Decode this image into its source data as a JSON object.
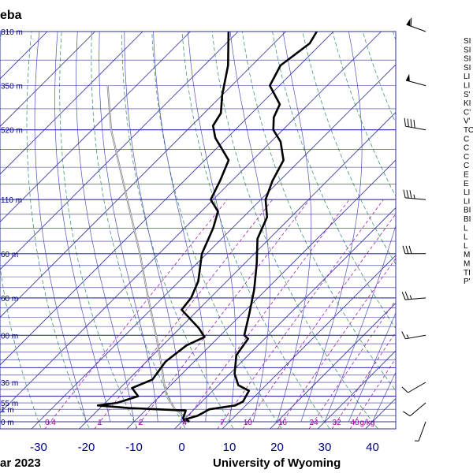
{
  "title": "eba",
  "footer": {
    "date": "ar 2023",
    "credit": "University of Wyoming"
  },
  "colors": {
    "isobar": "#3030a0",
    "isotherm": "#3333aa",
    "dry_adiabat": "#2e8b57",
    "moist_adiabat": "#5050c0",
    "mixing_ratio": "#a000a0",
    "profile": "#000000",
    "parcel": "#888888",
    "tick_text": "#000080"
  },
  "chart_data": {
    "type": "line",
    "title": "eba",
    "xlabel": "",
    "ylabel": "",
    "xlim": [
      -40,
      45
    ],
    "x_ticks": [
      -30,
      -20,
      -10,
      0,
      10,
      20,
      30,
      40
    ],
    "height_labels": [
      {
        "label": "810 m",
        "p": 200
      },
      {
        "label": "350 m",
        "p": 250
      },
      {
        "label": "520 m",
        "p": 300
      },
      {
        "label": "110 m",
        "p": 400
      },
      {
        "label": "60 m",
        "p": 500
      },
      {
        "label": "60 m",
        "p": 600
      },
      {
        "label": "00 m",
        "p": 700
      },
      {
        "label": "36 m",
        "p": 850
      },
      {
        "label": "55 m",
        "p": 925
      },
      {
        "label": "1 m",
        "p": 950
      },
      {
        "label": "0 m",
        "p": 1000
      }
    ],
    "mixing_ratio_labels": [
      "0.4",
      "1",
      "2",
      "4",
      "7",
      "10",
      "16",
      "24",
      "32",
      "40",
      "g/kg"
    ],
    "series": [
      {
        "points": [
          {
            "p": 1000,
            "t": 1.6
          },
          {
            "p": 990,
            "t": 0.3
          },
          {
            "p": 975,
            "t": 2.1
          },
          {
            "p": 950,
            "t": 3.2
          },
          {
            "p": 935,
            "t": 7.8
          },
          {
            "p": 920,
            "t": 8.6
          },
          {
            "p": 880,
            "t": 7.6
          },
          {
            "p": 860,
            "t": 4.2
          },
          {
            "p": 820,
            "t": 1.0
          },
          {
            "p": 760,
            "t": -2.5
          },
          {
            "p": 710,
            "t": -3.5
          },
          {
            "p": 700,
            "t": -5.0
          },
          {
            "p": 640,
            "t": -8.5
          },
          {
            "p": 580,
            "t": -12.5
          },
          {
            "p": 520,
            "t": -17.5
          },
          {
            "p": 470,
            "t": -22.5
          },
          {
            "p": 430,
            "t": -25.0
          },
          {
            "p": 400,
            "t": -29.0
          },
          {
            "p": 370,
            "t": -31.5
          },
          {
            "p": 340,
            "t": -33.5
          },
          {
            "p": 315,
            "t": -38.0
          },
          {
            "p": 300,
            "t": -42.0
          },
          {
            "p": 285,
            "t": -44.5
          },
          {
            "p": 270,
            "t": -46.0
          },
          {
            "p": 250,
            "t": -52.0
          },
          {
            "p": 230,
            "t": -54.0
          },
          {
            "p": 210,
            "t": -52.5
          },
          {
            "p": 200,
            "t": -53.5
          }
        ]
      },
      {
        "points": [
          {
            "p": 1000,
            "t": 0.7
          },
          {
            "p": 985,
            "t": -0.5
          },
          {
            "p": 975,
            "t": -0.8
          },
          {
            "p": 955,
            "t": -1.5
          },
          {
            "p": 945,
            "t": -14.0
          },
          {
            "p": 935,
            "t": -21.0
          },
          {
            "p": 925,
            "t": -17.5
          },
          {
            "p": 900,
            "t": -14.5
          },
          {
            "p": 870,
            "t": -17.5
          },
          {
            "p": 840,
            "t": -15.0
          },
          {
            "p": 780,
            "t": -16.0
          },
          {
            "p": 730,
            "t": -15.0
          },
          {
            "p": 705,
            "t": -13.0
          },
          {
            "p": 680,
            "t": -16.0
          },
          {
            "p": 630,
            "t": -23.5
          },
          {
            "p": 600,
            "t": -24.0
          },
          {
            "p": 560,
            "t": -26.0
          },
          {
            "p": 500,
            "t": -31.0
          },
          {
            "p": 450,
            "t": -34.0
          },
          {
            "p": 420,
            "t": -36.5
          },
          {
            "p": 400,
            "t": -40.5
          },
          {
            "p": 370,
            "t": -42.5
          },
          {
            "p": 340,
            "t": -45.0
          },
          {
            "p": 310,
            "t": -52.5
          },
          {
            "p": 295,
            "t": -55.5
          },
          {
            "p": 280,
            "t": -56.5
          },
          {
            "p": 260,
            "t": -60.0
          },
          {
            "p": 230,
            "t": -65.0
          },
          {
            "p": 200,
            "t": -72.0
          }
        ]
      }
    ],
    "parcel": {
      "points": [
        {
          "p": 1000,
          "t": 1.6
        },
        {
          "p": 970,
          "t": -1.5
        },
        {
          "p": 950,
          "t": -4.0
        },
        {
          "p": 900,
          "t": -8.5
        },
        {
          "p": 850,
          "t": -12.0
        },
        {
          "p": 800,
          "t": -15.5
        },
        {
          "p": 700,
          "t": -23.5
        },
        {
          "p": 600,
          "t": -33.0
        },
        {
          "p": 500,
          "t": -44.0
        },
        {
          "p": 400,
          "t": -58.0
        },
        {
          "p": 300,
          "t": -76.0
        },
        {
          "p": 250,
          "t": -86.0
        }
      ]
    }
  },
  "wind_barbs": [
    {
      "p": 200,
      "dir": 290,
      "kt": 60
    },
    {
      "p": 250,
      "dir": 285,
      "kt": 50
    },
    {
      "p": 300,
      "dir": 280,
      "kt": 40
    },
    {
      "p": 400,
      "dir": 275,
      "kt": 35
    },
    {
      "p": 500,
      "dir": 270,
      "kt": 30
    },
    {
      "p": 600,
      "dir": 265,
      "kt": 25
    },
    {
      "p": 700,
      "dir": 260,
      "kt": 15
    },
    {
      "p": 850,
      "dir": 240,
      "kt": 10
    },
    {
      "p": 925,
      "dir": 230,
      "kt": 10
    },
    {
      "p": 1000,
      "dir": 200,
      "kt": 5
    }
  ],
  "station_params": [
    "SI",
    "SI",
    "SI",
    "SI",
    "LI",
    "LI",
    "S'",
    "KI",
    "C'",
    "V'",
    "TO",
    "C",
    "C",
    "C",
    "C",
    "E",
    "E",
    "LI",
    "LI",
    "BI",
    "BI",
    "L",
    "L",
    "L",
    "M",
    "M",
    "TI",
    "P'"
  ]
}
